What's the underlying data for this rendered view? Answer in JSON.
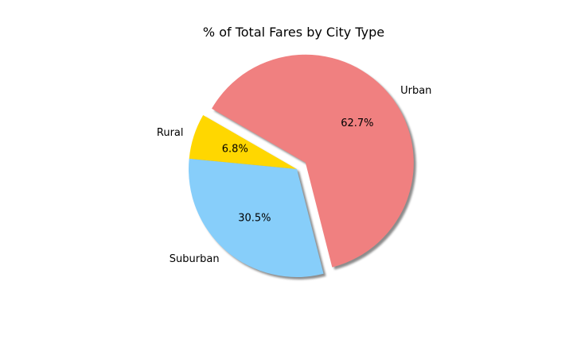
{
  "chart_data": {
    "type": "pie",
    "title": "% of Total Fares by City Type",
    "categories": [
      "Rural",
      "Suburban",
      "Urban"
    ],
    "values": [
      6.8,
      30.5,
      62.7
    ],
    "colors": [
      "#ffd700",
      "#87cefa",
      "#f08080"
    ],
    "percent_labels": [
      "6.8%",
      "30.5%",
      "62.7%"
    ],
    "explode": [
      0,
      0,
      0.1
    ],
    "shadow": true,
    "start_angle_deg": 150,
    "legend": "none"
  }
}
